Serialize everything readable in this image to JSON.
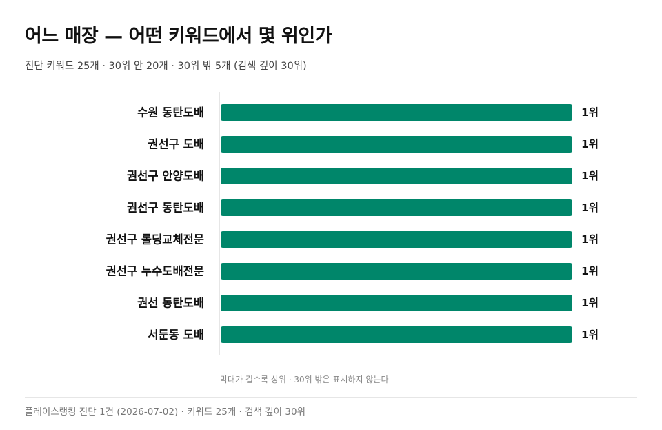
{
  "header": {
    "title": "어느 매장 — 어떤 키워드에서 몇 위인가",
    "subtitle": "진단 키워드 25개 · 30위 안 20개 · 30위 밖 5개 (검색 깊이 30위)"
  },
  "note": "막대가 길수록 상위 · 30위 밖은 표시하지 않는다",
  "footer": "플레이스랭킹 진단 1건 (2026-07-02) · 키워드 25개 · 검색 깊이 30위",
  "colors": {
    "bar": "#00866a",
    "axis": "#cccccc"
  },
  "chart_data": {
    "type": "bar",
    "orientation": "horizontal",
    "categories": [
      "수원 동탄도배",
      "권선구 도배",
      "권선구 안양도배",
      "권선구 동탄도배",
      "권선구 롤딩교체전문",
      "권선구 누수도배전문",
      "권선 동탄도배",
      "서둔동 도배"
    ],
    "values": [
      1,
      1,
      1,
      1,
      1,
      1,
      1,
      1
    ],
    "value_labels": [
      "1위",
      "1위",
      "1위",
      "1위",
      "1위",
      "1위",
      "1위",
      "1위"
    ],
    "rank_range": [
      1,
      30
    ],
    "title": "어느 매장 — 어떤 키워드에서 몇 위인가",
    "grid": false,
    "legend": "none"
  }
}
